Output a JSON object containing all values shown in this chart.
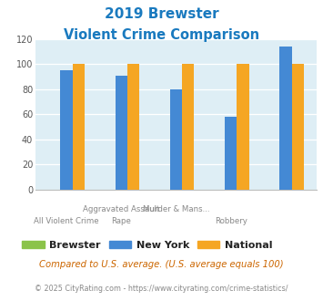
{
  "title_line1": "2019 Brewster",
  "title_line2": "Violent Crime Comparison",
  "title_color": "#1a7abf",
  "group_labels_top": [
    "",
    "Aggravated Assault",
    "Murder & Mans...",
    "",
    ""
  ],
  "group_labels_bot": [
    "All Violent Crime",
    "Rape",
    "",
    "Robbery",
    ""
  ],
  "brewster": [
    0,
    0,
    0,
    0,
    0
  ],
  "new_york": [
    95,
    91,
    80,
    58,
    114
  ],
  "national": [
    100,
    100,
    100,
    100,
    100
  ],
  "n_groups": 5,
  "bar_width": 0.22,
  "brewster_color": "#8bc34a",
  "ny_color": "#4489d4",
  "national_color": "#f5a623",
  "bg_color": "#deeef5",
  "ylim": [
    0,
    120
  ],
  "yticks": [
    0,
    20,
    40,
    60,
    80,
    100,
    120
  ],
  "footnote1": "Compared to U.S. average. (U.S. average equals 100)",
  "footnote2": "© 2025 CityRating.com - https://www.cityrating.com/crime-statistics/",
  "footnote1_color": "#cc6600",
  "footnote2_color": "#888888",
  "legend_labels": [
    "Brewster",
    "New York",
    "National"
  ]
}
